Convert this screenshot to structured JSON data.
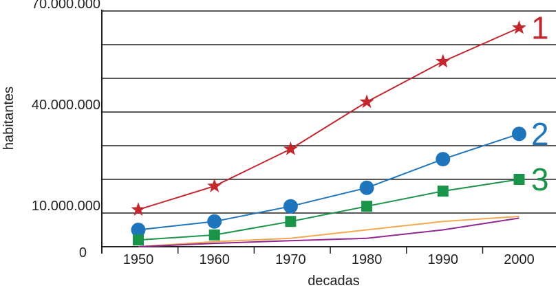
{
  "chart_data": {
    "type": "line",
    "title": "",
    "xlabel": "decadas",
    "ylabel": "habitantes",
    "categories": [
      "1950",
      "1960",
      "1970",
      "1980",
      "1990",
      "2000"
    ],
    "ylim": [
      0,
      70000000
    ],
    "y_tick_values": [
      0,
      10000000,
      40000000,
      70000000
    ],
    "y_tick_labels": [
      "0",
      "10.000.000",
      "40.000.000",
      "70.000.000"
    ],
    "gridlines": [
      10000000,
      20000000,
      30000000,
      40000000,
      50000000,
      60000000,
      70000000
    ],
    "grid": true,
    "series": [
      {
        "name": "1",
        "color": "#c1272d",
        "marker": "star",
        "values": [
          11000000,
          18000000,
          29000000,
          43000000,
          55000000,
          65000000
        ]
      },
      {
        "name": "2",
        "color": "#1f75bc",
        "marker": "circle",
        "values": [
          5000000,
          7500000,
          12000000,
          17500000,
          26000000,
          33500000
        ]
      },
      {
        "name": "3",
        "color": "#1a9448",
        "marker": "square",
        "values": [
          2000000,
          3500000,
          7500000,
          12000000,
          16500000,
          20000000
        ]
      },
      {
        "name": "",
        "color": "#f4a951",
        "marker": "none",
        "values": [
          0,
          1500000,
          2500000,
          5000000,
          7500000,
          9000000
        ]
      },
      {
        "name": "",
        "color": "#92278f",
        "marker": "none",
        "values": [
          0,
          1000000,
          1800000,
          2500000,
          5000000,
          8500000
        ]
      }
    ]
  }
}
